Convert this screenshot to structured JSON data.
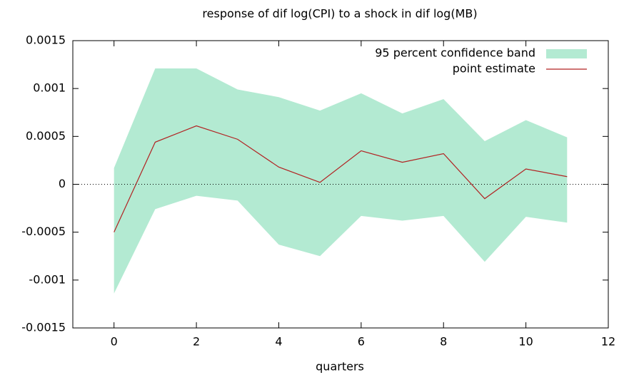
{
  "chart_data": {
    "type": "line",
    "title": "response of dif log(CPI) to a shock in dif log(MB)",
    "x_label": "quarters",
    "x": [
      0,
      1,
      2,
      3,
      4,
      5,
      6,
      7,
      8,
      9,
      10,
      11
    ],
    "series": [
      {
        "name": "95 percent confidence band",
        "color": "#b3ead2",
        "upper": [
          0.00017,
          0.00121,
          0.00121,
          0.00099,
          0.00091,
          0.00077,
          0.00095,
          0.00074,
          0.00089,
          0.00045,
          0.00067,
          0.00049
        ],
        "lower": [
          -0.00114,
          -0.00026,
          -0.00012,
          -0.00017,
          -0.00063,
          -0.00075,
          -0.00033,
          -0.00038,
          -0.00033,
          -0.00081,
          -0.00034,
          -0.0004
        ]
      },
      {
        "name": "point estimate",
        "color": "#b22222",
        "values": [
          -0.0005,
          0.00044,
          0.00061,
          0.00047,
          0.00018,
          2e-05,
          0.00035,
          0.00023,
          0.00032,
          -0.00015,
          0.00016,
          8e-05
        ]
      }
    ],
    "xlim": [
      -1,
      12
    ],
    "xticks": [
      0,
      2,
      4,
      6,
      8,
      10,
      12
    ],
    "ylim": [
      -0.0015,
      0.0015
    ],
    "yticks": [
      -0.0015,
      -0.001,
      -0.0005,
      0,
      0.0005,
      0.001,
      0.0015
    ],
    "zero_line": true,
    "legend": "top-right"
  }
}
